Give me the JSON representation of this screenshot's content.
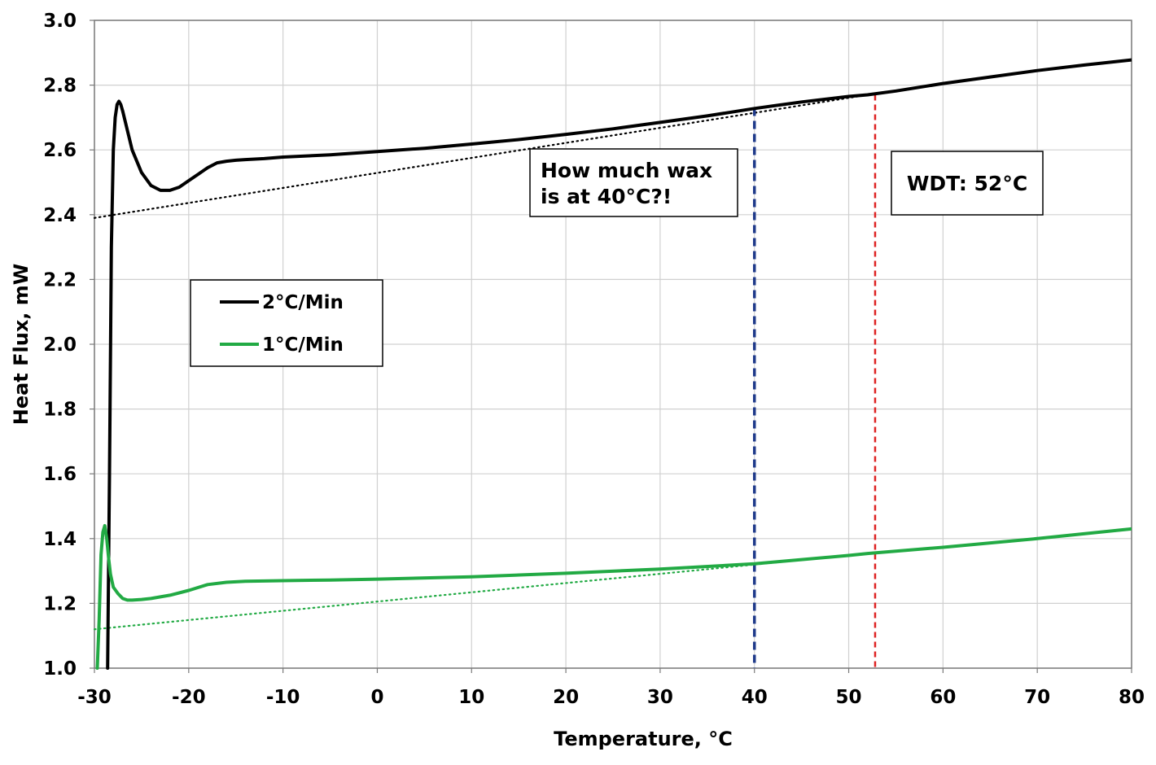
{
  "chart_data": {
    "type": "line",
    "xlabel": "Temperature, °C",
    "ylabel": "Heat Flux, mW",
    "xlim": [
      -30,
      80
    ],
    "ylim": [
      1.0,
      3.0
    ],
    "xticks": [
      -30,
      -20,
      -10,
      0,
      10,
      20,
      30,
      40,
      50,
      60,
      70,
      80
    ],
    "yticks": [
      1.0,
      1.2,
      1.4,
      1.6,
      1.8,
      2.0,
      2.2,
      2.4,
      2.6,
      2.8,
      3.0
    ],
    "xtick_labels": [
      "-30",
      "-20",
      "-10",
      "0",
      "10",
      "20",
      "30",
      "40",
      "50",
      "60",
      "70",
      "80"
    ],
    "ytick_labels": [
      "1.0",
      "1.2",
      "1.4",
      "1.6",
      "1.8",
      "2.0",
      "2.2",
      "2.4",
      "2.6",
      "2.8",
      "3.0"
    ],
    "grid": true,
    "legend_position": "left-middle",
    "series": [
      {
        "name": "2°C/Min",
        "color": "#000000",
        "x": [
          -28.6,
          -28.4,
          -28.2,
          -28.0,
          -27.8,
          -27.6,
          -27.4,
          -27.2,
          -27.0,
          -26.5,
          -26.0,
          -25.0,
          -24.0,
          -23.0,
          -22.0,
          -21.0,
          -20.0,
          -19.0,
          -18.0,
          -17.0,
          -16.0,
          -15.0,
          -14.0,
          -12.0,
          -10.0,
          -5.0,
          0.0,
          5.0,
          10.0,
          15.0,
          20.0,
          25.0,
          30.0,
          35.0,
          40.0,
          45.0,
          50.0,
          52.0,
          55.0,
          60.0,
          65.0,
          70.0,
          75.0,
          80.0
        ],
        "y": [
          1.0,
          1.6,
          2.3,
          2.6,
          2.7,
          2.74,
          2.75,
          2.74,
          2.72,
          2.66,
          2.6,
          2.53,
          2.49,
          2.475,
          2.475,
          2.485,
          2.505,
          2.525,
          2.545,
          2.56,
          2.565,
          2.568,
          2.57,
          2.573,
          2.578,
          2.585,
          2.595,
          2.605,
          2.618,
          2.632,
          2.648,
          2.665,
          2.685,
          2.705,
          2.728,
          2.748,
          2.765,
          2.77,
          2.782,
          2.805,
          2.825,
          2.845,
          2.862,
          2.878
        ]
      },
      {
        "name": "1°C/Min",
        "color": "#22aa44",
        "x": [
          -29.7,
          -29.5,
          -29.3,
          -29.1,
          -28.9,
          -28.7,
          -28.5,
          -28.3,
          -28.0,
          -27.5,
          -27.0,
          -26.5,
          -26.0,
          -25.0,
          -24.0,
          -22.0,
          -20.0,
          -18.0,
          -16.0,
          -14.0,
          -10.0,
          -5.0,
          0.0,
          10.0,
          20.0,
          30.0,
          40.0,
          50.0,
          52.0,
          60.0,
          70.0,
          80.0
        ],
        "y": [
          1.0,
          1.15,
          1.35,
          1.42,
          1.44,
          1.4,
          1.34,
          1.29,
          1.25,
          1.23,
          1.215,
          1.21,
          1.21,
          1.212,
          1.215,
          1.225,
          1.24,
          1.258,
          1.265,
          1.268,
          1.27,
          1.272,
          1.275,
          1.282,
          1.293,
          1.306,
          1.322,
          1.348,
          1.354,
          1.373,
          1.4,
          1.43
        ]
      }
    ],
    "baselines": [
      {
        "series": "2°C/Min",
        "style": "dotted",
        "color": "#000000",
        "x": [
          -30,
          52
        ],
        "y": [
          2.39,
          2.77
        ]
      },
      {
        "series": "1°C/Min",
        "style": "dotted",
        "color": "#22aa44",
        "x": [
          -30,
          52
        ],
        "y": [
          1.12,
          1.354
        ]
      }
    ],
    "vlines": [
      {
        "x": 40,
        "color": "#1f3a8a",
        "style": "dashed"
      },
      {
        "x": 52.8,
        "color": "#dd2222",
        "style": "dashed"
      }
    ],
    "annotations": [
      {
        "lines": [
          "How much wax",
          "is at 40°C?!"
        ]
      },
      {
        "lines": [
          "WDT: 52°C"
        ]
      }
    ]
  }
}
